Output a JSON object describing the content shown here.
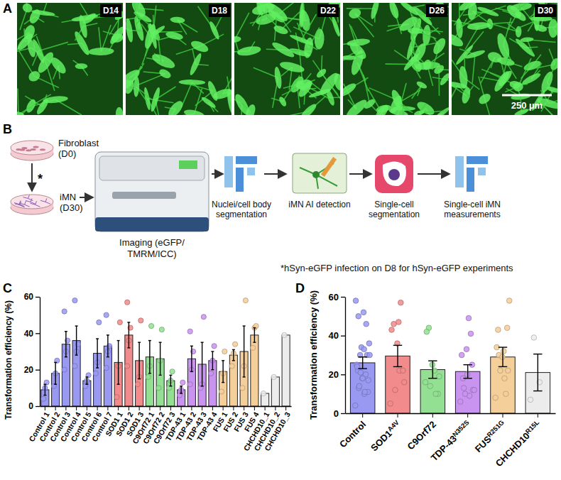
{
  "panel_labels": [
    "A",
    "B",
    "C",
    "D"
  ],
  "panel_a": {
    "days": [
      "D14",
      "D18",
      "D22",
      "D26",
      "D30"
    ],
    "scale_bar": "250 µm"
  },
  "panel_b": {
    "fibroblast": [
      "Fibroblast",
      "(D0)"
    ],
    "asterisk": "*",
    "imn": [
      "iMN",
      "(D30)"
    ],
    "imaging": [
      "Imaging (eGFP/",
      "TMRM/ICC)"
    ],
    "steps": [
      [
        "Nuclei/cell body",
        "segmentation"
      ],
      [
        "iMN AI detection"
      ],
      [
        "Single-cell",
        "segmentation"
      ],
      [
        "Single-cell iMN",
        "measurements"
      ]
    ],
    "footnote": "*hSyn-eGFP infection on D8 for hSyn-eGFP experiments"
  },
  "chart_data": [
    {
      "type": "bar",
      "y_label": "Transformation efficiency (%)",
      "categories": [
        "Control 1",
        "Control 2",
        "Control 3",
        "Control 4",
        "Control 5",
        "Control 6",
        "Control 7",
        "SOD1 1",
        "SOD1 2",
        "SOD1 3",
        "C9Orf72 1",
        "C9Orf72 2",
        "C9Orf72 3",
        "TDP-43 1",
        "TDP-43 2",
        "TDP-43 3",
        "TDP-43 4",
        "FUS 1",
        "FUS 2",
        "FUS 3",
        "FUS 4",
        "CHCHD10_1",
        "CHCHD10_2",
        "CHCHD10_3"
      ],
      "values": [
        9,
        18,
        34,
        36,
        14,
        29,
        33,
        24,
        39,
        25,
        27,
        26,
        14,
        9,
        26,
        23,
        25,
        19,
        28,
        30,
        39,
        7,
        16,
        39
      ],
      "errors": [
        3,
        6,
        7,
        8,
        2,
        8,
        6,
        12,
        7,
        10,
        9,
        9,
        3,
        2,
        7,
        12,
        5,
        6,
        3,
        14,
        4,
        null,
        null,
        null
      ],
      "points": [
        [
          4,
          10,
          13
        ],
        [
          11,
          18,
          25
        ],
        [
          20,
          30,
          36,
          52
        ],
        [
          22,
          30,
          34,
          58
        ],
        [
          11,
          14,
          17
        ],
        [
          18,
          24,
          46
        ],
        [
          21,
          30,
          33,
          50
        ],
        [
          5,
          22,
          46
        ],
        [
          22,
          36,
          43,
          57
        ],
        [
          12,
          16,
          47
        ],
        [
          16,
          22,
          44
        ],
        [
          10,
          25,
          42
        ],
        [
          10,
          14,
          19
        ],
        [
          6,
          9,
          13
        ],
        [
          12,
          20,
          30,
          41
        ],
        [
          10,
          12,
          49
        ],
        [
          18,
          25,
          33
        ],
        [
          8,
          18,
          30
        ],
        [
          22,
          29,
          34
        ],
        [
          10,
          22,
          58
        ],
        [
          32,
          43,
          44
        ],
        [
          7
        ],
        [
          16
        ],
        [
          39
        ]
      ],
      "colors": [
        "#9999f2",
        "#9999f2",
        "#9999f2",
        "#9999f2",
        "#9999f2",
        "#9999f2",
        "#9999f2",
        "#f28b8b",
        "#f28b8b",
        "#f28b8b",
        "#93e093",
        "#93e093",
        "#93e093",
        "#c993f0",
        "#c993f0",
        "#c993f0",
        "#c993f0",
        "#f4cf9a",
        "#f4cf9a",
        "#f4cf9a",
        "#f4cf9a",
        "#ececec",
        "#ececec",
        "#ececec"
      ],
      "ylim": [
        0,
        60
      ],
      "yticks": [
        0,
        20,
        40,
        60
      ]
    },
    {
      "type": "bar",
      "y_label": "Transformation efficiency (%)",
      "categories": [
        "Control",
        "SOD1",
        "C9Orf72",
        "TDP-43",
        "FUS",
        "CHCHD10"
      ],
      "category_superscripts": [
        null,
        "A4V",
        null,
        "N352S",
        "R251G",
        "R15L"
      ],
      "values": [
        26,
        29.5,
        22.5,
        21.5,
        29,
        21
      ],
      "errors": [
        3,
        5.5,
        4.5,
        3.5,
        5,
        9.5
      ],
      "points": [
        [
          4,
          10,
          13,
          11,
          18,
          25,
          20,
          30,
          36,
          52,
          22,
          30,
          34,
          58,
          11,
          14,
          17,
          18,
          24,
          46,
          21,
          30,
          33,
          50
        ],
        [
          5,
          22,
          46,
          22,
          36,
          43,
          57,
          12,
          16,
          47
        ],
        [
          16,
          22,
          44,
          10,
          25,
          42,
          10,
          14,
          19
        ],
        [
          6,
          9,
          13,
          12,
          20,
          30,
          41,
          10,
          12,
          49,
          18,
          25,
          33
        ],
        [
          8,
          18,
          30,
          22,
          29,
          34,
          10,
          22,
          58,
          32,
          43,
          44
        ],
        [
          7,
          16,
          39
        ]
      ],
      "colors": [
        "#9999f2",
        "#f28b8b",
        "#93e093",
        "#c993f0",
        "#f4cf9a",
        "#ececec"
      ],
      "ylim": [
        0,
        60
      ],
      "yticks": [
        0,
        20,
        40,
        60
      ]
    }
  ]
}
